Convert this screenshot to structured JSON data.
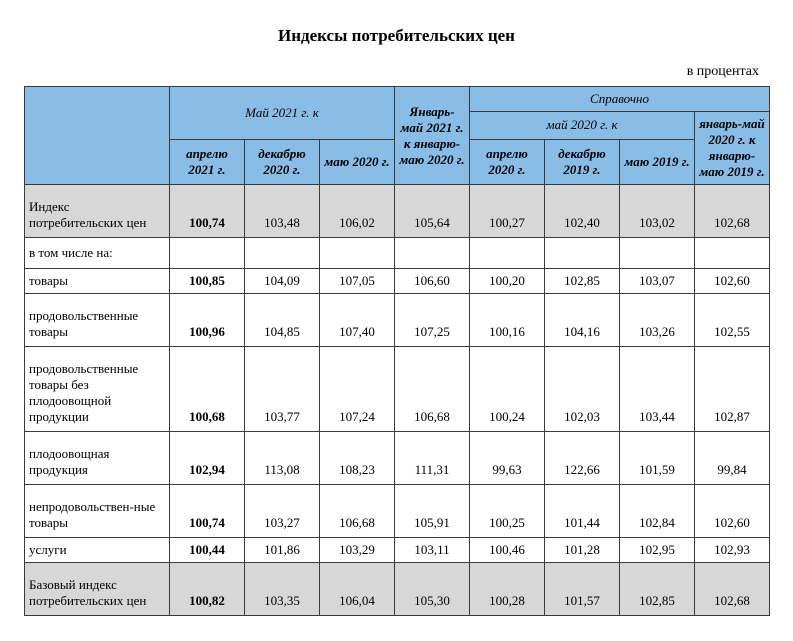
{
  "title": "Индексы потребительских цен",
  "unit": "в процентах",
  "header": {
    "group_may2021": "Май 2021 г. к",
    "group_janmay2021": "Январь-май 2021 г. к январю-маю 2020 г.",
    "group_ref": "Справочно",
    "group_may2020": "май 2020 г. к",
    "group_janmay2020": "январь-май 2020 г. к январю-маю 2019 г.",
    "col1": "апрелю 2021 г.",
    "col2": "декабрю 2020 г.",
    "col3": "маю 2020 г.",
    "col5": "апрелю 2020 г.",
    "col6": "декабрю 2019 г.",
    "col7": "маю 2019 г."
  },
  "rows": {
    "cpi": {
      "label": "Индекс потребительских цен",
      "v": [
        "100,74",
        "103,48",
        "106,02",
        "105,64",
        "100,27",
        "102,40",
        "103,02",
        "102,68"
      ]
    },
    "sublabel": "в том числе на:",
    "goods": {
      "label": "товары",
      "v": [
        "100,85",
        "104,09",
        "107,05",
        "106,60",
        "100,20",
        "102,85",
        "103,07",
        "102,60"
      ]
    },
    "food": {
      "label": "продовольственные товары",
      "v": [
        "100,96",
        "104,85",
        "107,40",
        "107,25",
        "100,16",
        "104,16",
        "103,26",
        "102,55"
      ]
    },
    "food_ex_veg": {
      "label": "продовольственные товары без плодоовощной продукции",
      "v": [
        "100,68",
        "103,77",
        "107,24",
        "106,68",
        "100,24",
        "102,03",
        "103,44",
        "102,87"
      ]
    },
    "veg": {
      "label": "плодоовощная продукция",
      "v": [
        "102,94",
        "113,08",
        "108,23",
        "111,31",
        "99,63",
        "122,66",
        "101,59",
        "99,84"
      ]
    },
    "nonfood": {
      "label": "непродовольствен-ные товары",
      "v": [
        "100,74",
        "103,27",
        "106,68",
        "105,91",
        "100,25",
        "101,44",
        "102,84",
        "102,60"
      ]
    },
    "services": {
      "label": "услуги",
      "v": [
        "100,44",
        "101,86",
        "103,29",
        "103,11",
        "100,46",
        "101,28",
        "102,95",
        "102,93"
      ]
    },
    "core": {
      "label": "Базовый индекс потребительских цен",
      "v": [
        "100,82",
        "103,35",
        "106,04",
        "105,30",
        "100,28",
        "101,57",
        "102,85",
        "102,68"
      ]
    }
  },
  "style": {
    "header_bg": "#89bde8",
    "shaded_row_bg": "#d7d7d7",
    "border_color": "#3a3a3a",
    "font_family": "Times New Roman",
    "title_fontsize_pt": 13,
    "body_fontsize_pt": 10
  }
}
